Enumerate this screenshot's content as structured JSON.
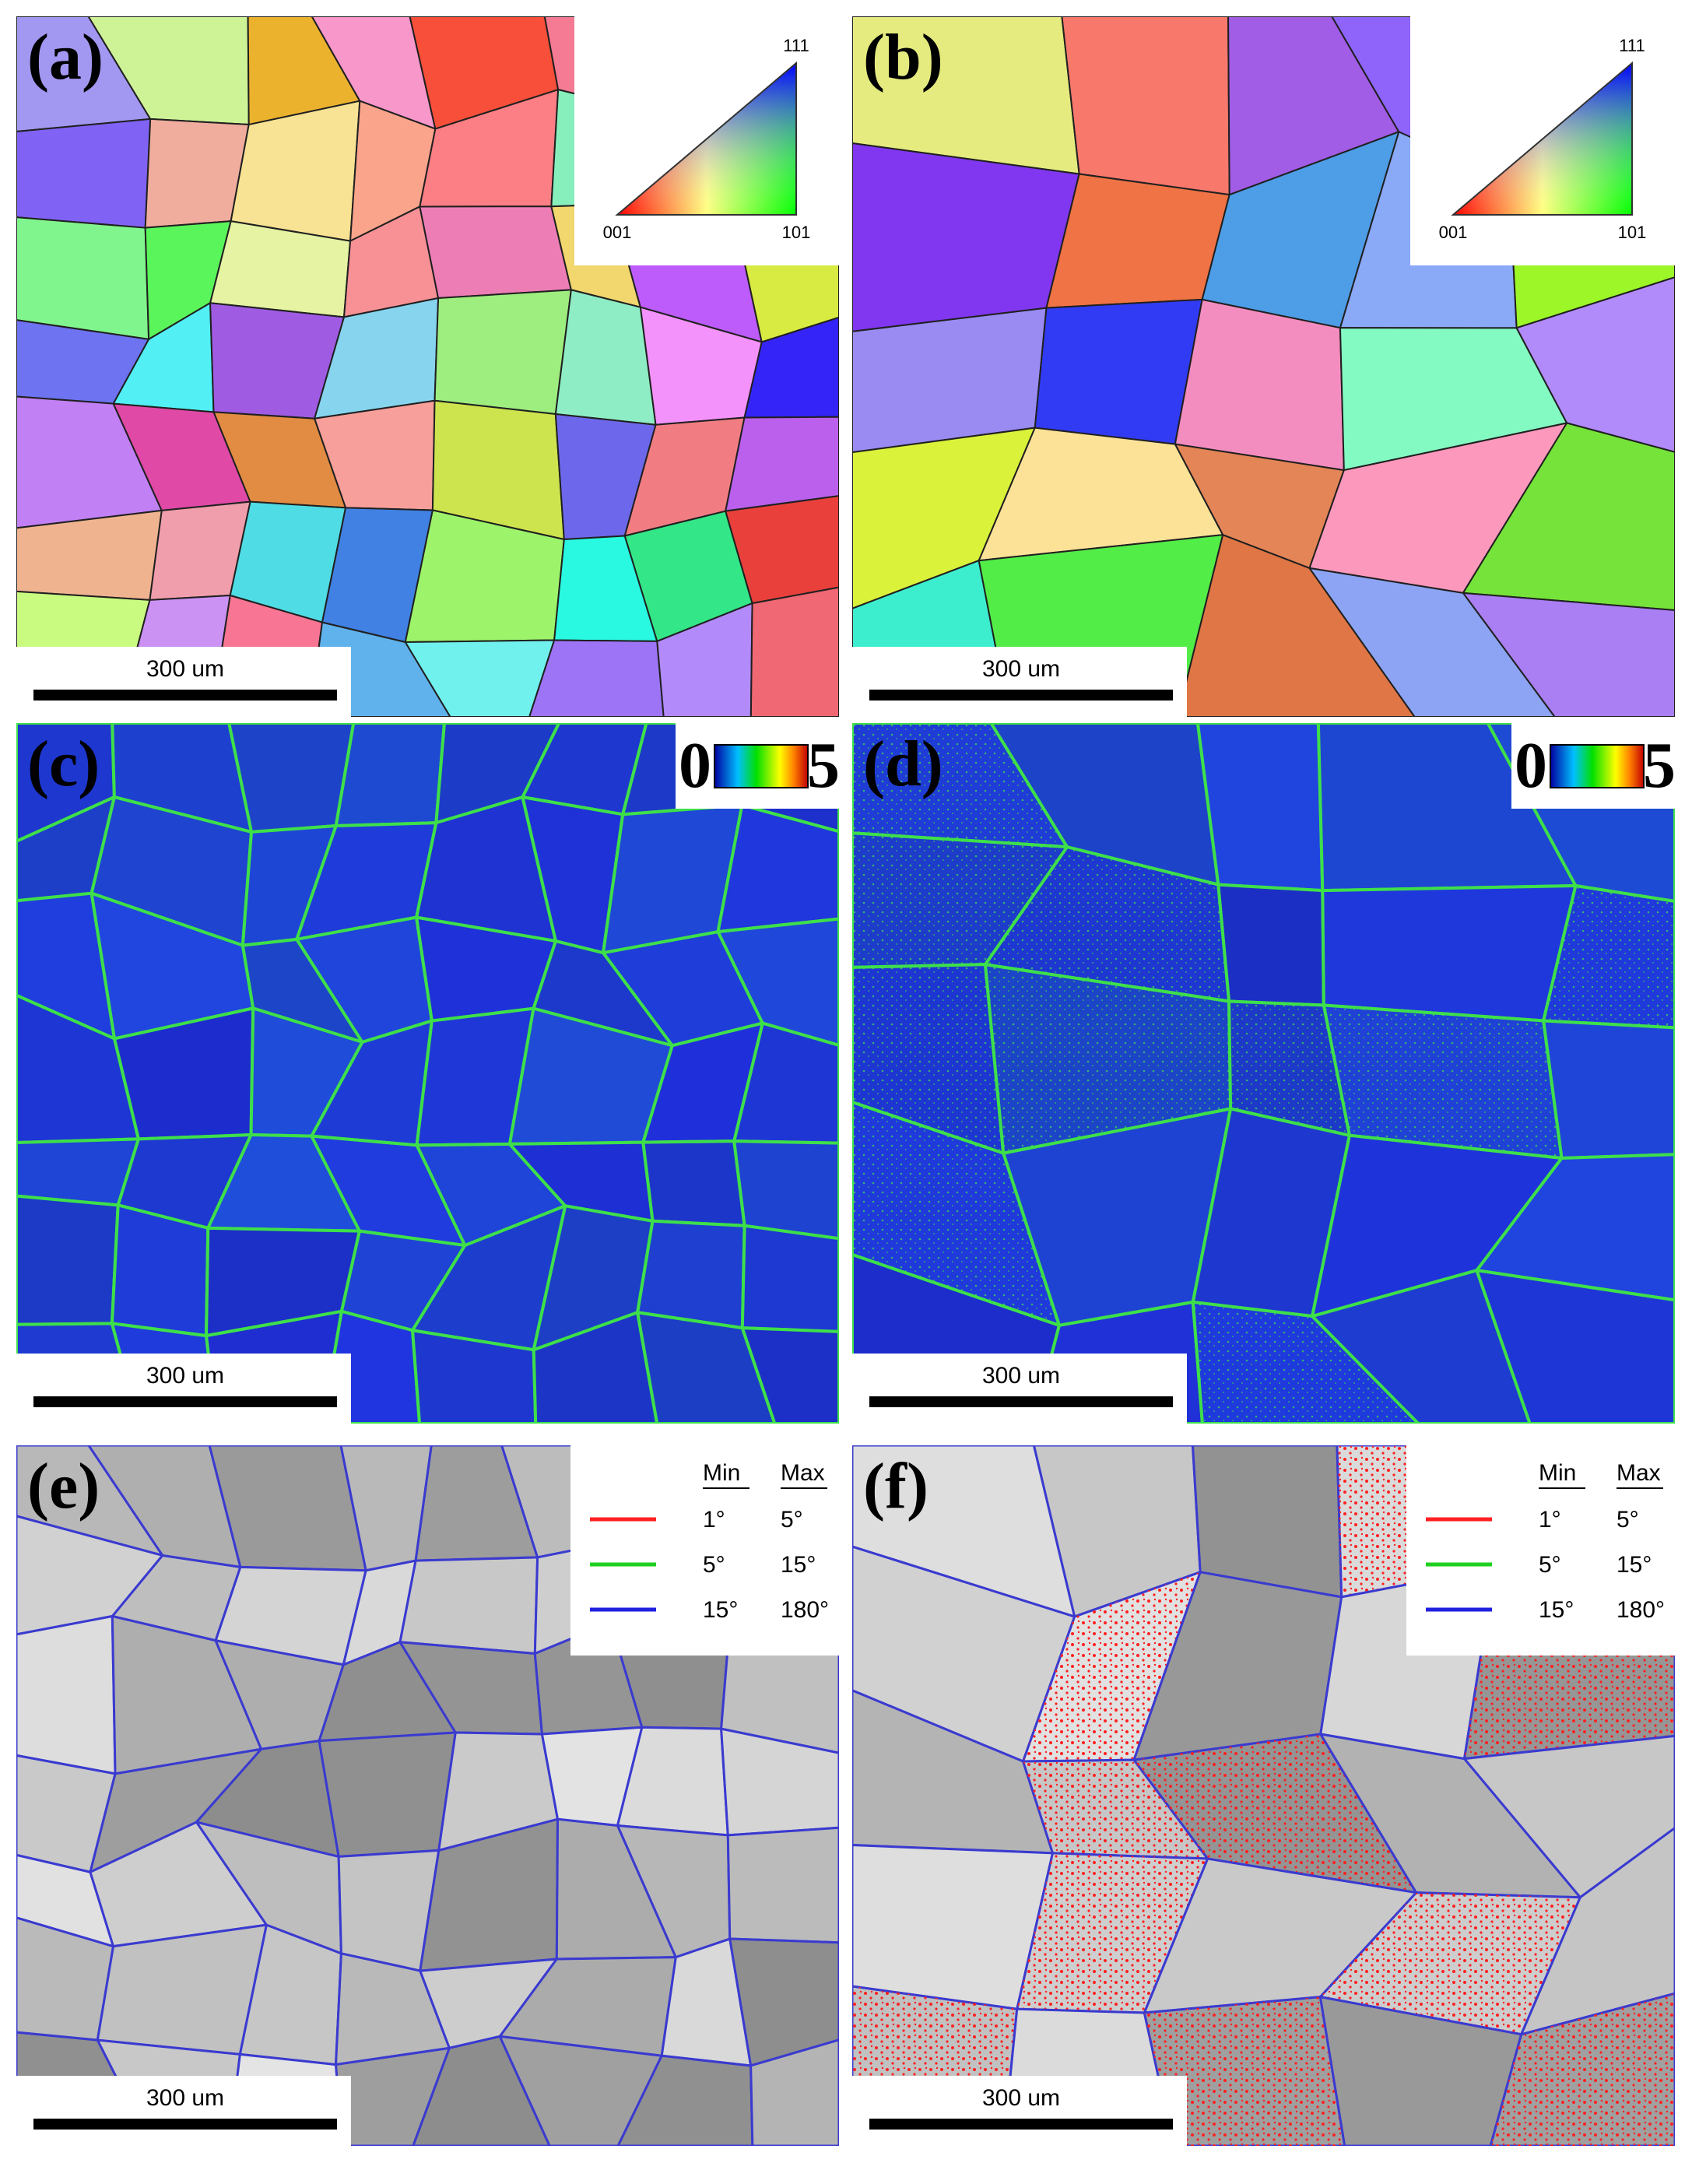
{
  "panels": [
    {
      "label": "(a)",
      "scale_bar": "300 um"
    },
    {
      "label": "(b)",
      "scale_bar": "300 um"
    },
    {
      "label": "(c)",
      "scale_bar": "300 um"
    },
    {
      "label": "(d)",
      "scale_bar": "300 um"
    },
    {
      "label": "(e)",
      "scale_bar": "300 um"
    },
    {
      "label": "(f)",
      "scale_bar": "300 um"
    }
  ],
  "ipf_legend": {
    "top": "111",
    "left": "001",
    "right": "101"
  },
  "kam_legend": {
    "min": "0",
    "max": "5"
  },
  "misorientation_legend": {
    "headers": [
      "Min",
      "Max"
    ],
    "rows": [
      {
        "min": "1°",
        "max": "5°",
        "color": "#ff2020"
      },
      {
        "min": "5°",
        "max": "15°",
        "color": "#20d020"
      },
      {
        "min": "15°",
        "max": "180°",
        "color": "#2020e0"
      }
    ]
  }
}
